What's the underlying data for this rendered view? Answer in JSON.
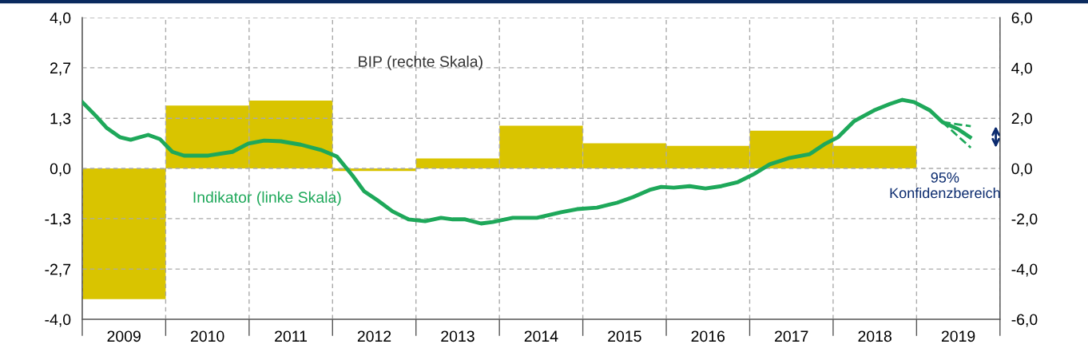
{
  "chart_data": {
    "type": "bar",
    "series": [
      {
        "name": "BIP (rechte Skala)",
        "axis": "y2",
        "color": "#d9c400",
        "x": [
          2009.5,
          2010.5,
          2011.5,
          2012.5,
          2013.5,
          2014.5,
          2015.5,
          2016.5,
          2017.5,
          2018.5
        ],
        "values": [
          -5.2,
          2.5,
          2.7,
          -0.1,
          0.4,
          1.7,
          1.0,
          0.9,
          1.5,
          0.9
        ]
      },
      {
        "name": "Indikator (linke Skala)",
        "type": "line",
        "line_style": "solid",
        "color": "#1ea85a",
        "x": [
          2009.0,
          2009.16,
          2009.29,
          2009.45,
          2009.58,
          2009.79,
          2009.93,
          2010.08,
          2010.22,
          2010.51,
          2010.8,
          2010.99,
          2011.18,
          2011.38,
          2011.62,
          2011.86,
          2012.05,
          2012.24,
          2012.38,
          2012.53,
          2012.72,
          2012.91,
          2013.11,
          2013.3,
          2013.44,
          2013.59,
          2013.78,
          2013.92,
          2014.16,
          2014.45,
          2014.74,
          2014.93,
          2015.17,
          2015.41,
          2015.6,
          2015.8,
          2015.94,
          2016.09,
          2016.28,
          2016.47,
          2016.66,
          2016.86,
          2017.05,
          2017.24,
          2017.48,
          2017.72,
          2017.91,
          2018.06,
          2018.25,
          2018.49,
          2018.68,
          2018.83,
          2018.97,
          2019.16,
          2019.31,
          2019.5,
          2019.64
        ],
        "values": [
          1.76,
          1.4,
          1.08,
          0.83,
          0.76,
          0.89,
          0.78,
          0.44,
          0.34,
          0.34,
          0.44,
          0.66,
          0.74,
          0.72,
          0.63,
          0.49,
          0.32,
          -0.19,
          -0.61,
          -0.83,
          -1.14,
          -1.35,
          -1.4,
          -1.31,
          -1.35,
          -1.35,
          -1.46,
          -1.42,
          -1.31,
          -1.31,
          -1.16,
          -1.08,
          -1.04,
          -0.91,
          -0.76,
          -0.57,
          -0.49,
          -0.51,
          -0.47,
          -0.53,
          -0.47,
          -0.36,
          -0.15,
          0.11,
          0.28,
          0.38,
          0.66,
          0.83,
          1.25,
          1.54,
          1.71,
          1.82,
          1.76,
          1.54,
          1.23,
          1.04,
          0.83
        ]
      },
      {
        "type": "line",
        "line_style": "dashed",
        "color": "#1ea85a",
        "x": [
          2019.31,
          2019.65
        ],
        "values": [
          1.23,
          1.12
        ]
      },
      {
        "type": "line",
        "line_style": "dashed",
        "color": "#1ea85a",
        "x": [
          2019.31,
          2019.65
        ],
        "values": [
          1.23,
          0.55
        ]
      }
    ],
    "xlim": [
      2009,
      2020
    ],
    "xticks": [
      {
        "value": 2009,
        "label": null
      },
      {
        "value": 2010,
        "label": null
      },
      {
        "value": 2011,
        "label": null
      },
      {
        "value": 2012,
        "label": null
      },
      {
        "value": 2013,
        "label": null
      },
      {
        "value": 2014,
        "label": null
      },
      {
        "value": 2015,
        "label": null
      },
      {
        "value": 2016,
        "label": null
      },
      {
        "value": 2017,
        "label": null
      },
      {
        "value": 2018,
        "label": null
      },
      {
        "value": 2019,
        "label": null
      },
      {
        "value": 2020,
        "label": null
      },
      {
        "value": 2009.5,
        "label": "2009"
      },
      {
        "value": 2010.5,
        "label": "2010"
      },
      {
        "value": 2011.5,
        "label": "2011"
      },
      {
        "value": 2012.5,
        "label": "2012"
      },
      {
        "value": 2013.5,
        "label": "2013"
      },
      {
        "value": 2014.5,
        "label": "2014"
      },
      {
        "value": 2015.5,
        "label": "2015"
      },
      {
        "value": 2016.5,
        "label": "2016"
      },
      {
        "value": 2017.5,
        "label": "2017"
      },
      {
        "value": 2018.5,
        "label": "2018"
      },
      {
        "value": 2019.5,
        "label": "2019"
      }
    ],
    "ylim": [
      -4,
      4
    ],
    "yticks": [
      {
        "value": 4,
        "label": "4,0"
      },
      {
        "value": 2.67,
        "label": "2,7"
      },
      {
        "value": 1.33,
        "label": "1,3"
      },
      {
        "value": 0,
        "label": "0,0"
      },
      {
        "value": -1.33,
        "label": "-1,3"
      },
      {
        "value": -2.67,
        "label": "-2,7"
      },
      {
        "value": -4,
        "label": "-4,0"
      }
    ],
    "y2lim": [
      -6,
      6
    ],
    "y2ticks": [
      {
        "value": 6,
        "label": "6,0"
      },
      {
        "value": 4,
        "label": "4,0"
      },
      {
        "value": 2,
        "label": "2,0"
      },
      {
        "value": 0,
        "label": "0,0"
      },
      {
        "value": -2,
        "label": "-2,0"
      },
      {
        "value": -4,
        "label": "-4,0"
      },
      {
        "value": -6,
        "label": "-6,0"
      }
    ],
    "grid": true,
    "legend": false,
    "annotations": [
      "95%\nKonfidenzbereich"
    ]
  }
}
